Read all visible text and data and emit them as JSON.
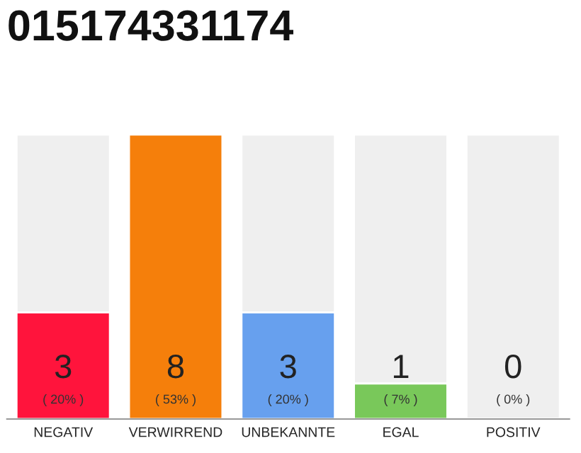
{
  "chart_data": {
    "type": "bar",
    "title": "015174331174",
    "categories": [
      "NEGATIV",
      "VERWIRREND",
      "UNBEKANNTE",
      "EGAL",
      "POSITIV"
    ],
    "values": [
      3,
      8,
      3,
      1,
      0
    ],
    "value_labels": [
      "3",
      "8",
      "3",
      "1",
      "0"
    ],
    "colors": [
      "#ff143c",
      "#f57f0b",
      "#67a0ee",
      "#79c85a",
      null
    ],
    "tick_labels": "x",
    "annotations": [
      "( 20% )",
      "( 53% )",
      "( 20% )",
      "( 7% )",
      "( 0% )"
    ]
  }
}
